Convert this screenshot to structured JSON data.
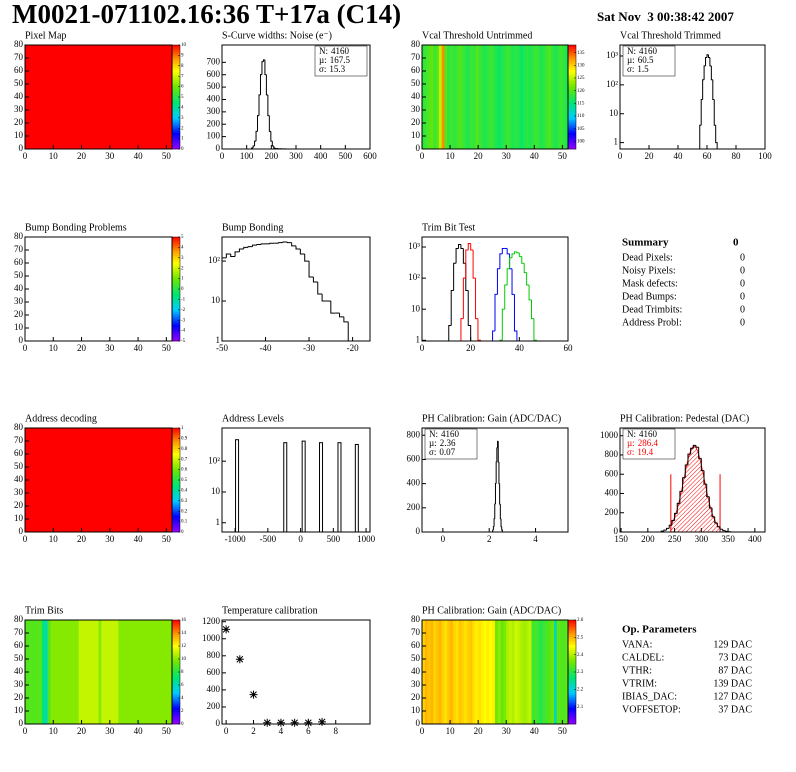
{
  "header": {
    "title": "M0021-071102.16:36 T+17a (C14)",
    "date": "Sat Nov  3 00:38:42 2007"
  },
  "summary": {
    "title": "Summary",
    "value": 0,
    "rows": [
      {
        "label": "Dead Pixels:",
        "value": 0
      },
      {
        "label": "Noisy Pixels:",
        "value": 0
      },
      {
        "label": "Mask defects:",
        "value": 0
      },
      {
        "label": "Dead Bumps:",
        "value": 0
      },
      {
        "label": "Dead Trimbits:",
        "value": 0
      },
      {
        "label": "Address Probl:",
        "value": 0
      }
    ]
  },
  "op_parameters": {
    "title": "Op. Parameters",
    "rows": [
      {
        "label": "VANA:",
        "value": "129 DAC"
      },
      {
        "label": "CALDEL:",
        "value": "73 DAC"
      },
      {
        "label": "VTHR:",
        "value": "87 DAC"
      },
      {
        "label": "VTRIM:",
        "value": "139 DAC"
      },
      {
        "label": "IBIAS_DAC:",
        "value": "127 DAC"
      },
      {
        "label": "VOFFSETOP:",
        "value": "37 DAC"
      }
    ]
  },
  "chart_data": [
    {
      "type": "heatmap",
      "title": "Pixel Map",
      "xlim": [
        0,
        52
      ],
      "ylim": [
        0,
        80
      ],
      "xticks": [
        0,
        10,
        20,
        30,
        40,
        50
      ],
      "yticks": [
        0,
        10,
        20,
        30,
        40,
        50,
        60,
        70,
        80
      ],
      "zlim": [
        0,
        10
      ],
      "zticks": [
        0,
        1,
        2,
        3,
        4,
        5,
        6,
        7,
        8,
        9,
        10
      ],
      "z": 10
    },
    {
      "type": "histogram",
      "title": "S-Curve widths: Noise (e⁻)",
      "xlim": [
        0,
        600
      ],
      "ylim": [
        0,
        840
      ],
      "xticks": [
        0,
        100,
        200,
        300,
        400,
        500,
        600
      ],
      "yticks": [
        0,
        100,
        200,
        300,
        400,
        500,
        600,
        700
      ],
      "color": "#000000",
      "bins": [
        120,
        126,
        132,
        138,
        144,
        150,
        156,
        162,
        168,
        174,
        180,
        186,
        192,
        198,
        204,
        210,
        216,
        222,
        228,
        234,
        240,
        246,
        252,
        258
      ],
      "values": [
        8,
        24,
        64,
        142,
        270,
        437,
        601,
        706,
        720,
        601,
        437,
        270,
        142,
        64,
        24,
        8,
        4,
        3,
        2,
        2,
        1,
        1,
        1
      ],
      "stats_corner": "upper right",
      "stats": [
        {
          "label": "N:",
          "value": 4160
        },
        {
          "label": "µ:",
          "value": 167.5
        },
        {
          "label": "σ:",
          "value": 15.3
        }
      ]
    },
    {
      "type": "heatmap",
      "title": "Vcal Threshold Untrimmed",
      "xlim": [
        0,
        52
      ],
      "ylim": [
        0,
        80
      ],
      "xticks": [
        0,
        10,
        20,
        30,
        40,
        50
      ],
      "yticks": [
        0,
        10,
        20,
        30,
        40,
        50,
        60,
        70,
        80
      ],
      "zlim": [
        97,
        138
      ],
      "zticks": [
        100,
        105,
        110,
        115,
        120,
        125,
        130,
        135
      ],
      "column_values": [
        118,
        119,
        120,
        121,
        119,
        120,
        125,
        133,
        120,
        118,
        119,
        118,
        119,
        120,
        119,
        118,
        117,
        119,
        118,
        120,
        119,
        118,
        117,
        118,
        119,
        118,
        117,
        116,
        117,
        118,
        119,
        118,
        117,
        118,
        117,
        116,
        117,
        118,
        117,
        118,
        119,
        118,
        117,
        118,
        119,
        120,
        118,
        117,
        118,
        119,
        118,
        117
      ]
    },
    {
      "type": "histogram",
      "title": "Vcal Threshold Trimmed",
      "log_y": true,
      "xlim": [
        0,
        100
      ],
      "ylim": [
        0.6,
        2400
      ],
      "xticks": [
        0,
        20,
        40,
        60,
        80,
        100
      ],
      "yticks": [
        1,
        10,
        {
          "value": 100,
          "label": "10²"
        },
        {
          "value": 1000,
          "label": "10³"
        }
      ],
      "color": "#000000",
      "bins": [
        55,
        56,
        57,
        58,
        59,
        60,
        61,
        62,
        63,
        64,
        65,
        66,
        67
      ],
      "values": [
        4,
        31,
        150,
        455,
        884,
        1106,
        884,
        455,
        150,
        31,
        4,
        1
      ],
      "stats_corner": "upper left",
      "stats": [
        {
          "label": "N:",
          "value": 4160
        },
        {
          "label": "µ:",
          "value": 60.5
        },
        {
          "label": "σ:",
          "value": 1.5
        }
      ]
    },
    {
      "type": "heatmap",
      "title": "Bump Bonding Problems",
      "xlim": [
        0,
        52
      ],
      "ylim": [
        0,
        80
      ],
      "xticks": [
        0,
        10,
        20,
        30,
        40,
        50
      ],
      "yticks": [
        0,
        10,
        20,
        30,
        40,
        50,
        60,
        70,
        80
      ],
      "zlim": [
        -5,
        5
      ],
      "zticks": [
        -5,
        -4,
        -3,
        -2,
        -1,
        0,
        1,
        2,
        3,
        4,
        5
      ]
    },
    {
      "type": "histogram",
      "title": "Bump Bonding",
      "log_y": true,
      "xlim": [
        -50,
        -16
      ],
      "ylim": [
        1,
        400
      ],
      "xticks": [
        -50,
        -40,
        -30,
        -20
      ],
      "yticks": [
        1,
        10,
        {
          "value": 100,
          "label": "10²"
        }
      ],
      "color": "#000000",
      "bins": [
        -50,
        -49,
        -48,
        -47,
        -46,
        -45,
        -44,
        -43,
        -42,
        -41,
        -40,
        -39,
        -38,
        -37,
        -36,
        -35,
        -34,
        -33,
        -32,
        -31,
        -30,
        -29,
        -28,
        -27,
        -26,
        -25,
        -24,
        -23,
        -22,
        -21,
        -20
      ],
      "values": [
        120,
        150,
        130,
        170,
        200,
        220,
        230,
        250,
        260,
        270,
        270,
        280,
        280,
        290,
        300,
        290,
        240,
        200,
        150,
        100,
        40,
        30,
        15,
        10,
        10,
        5,
        5,
        4,
        3,
        1
      ]
    },
    {
      "type": "histogram",
      "title": "Trim Bit Test",
      "log_y": true,
      "xlim": [
        0,
        60
      ],
      "ylim": [
        0.95,
        2100
      ],
      "xticks": [
        0,
        20,
        40,
        60
      ],
      "yticks": [
        1,
        10,
        {
          "value": 100,
          "label": "10²"
        },
        {
          "value": 1000,
          "label": "10³"
        }
      ],
      "series": [
        {
          "color": "#000000",
          "bins": [
            11,
            12,
            13,
            14,
            15,
            16,
            17,
            18,
            19,
            20
          ],
          "values": [
            3,
            40,
            300,
            900,
            1200,
            900,
            300,
            40,
            3
          ]
        },
        {
          "color": "#ff0000",
          "bins": [
            16,
            17,
            18,
            19,
            20,
            21,
            22,
            23,
            24
          ],
          "values": [
            5,
            100,
            800,
            1300,
            800,
            100,
            5,
            1
          ]
        },
        {
          "color": "#0000ff",
          "bins": [
            29,
            30,
            31,
            32,
            33,
            34,
            35,
            36,
            37,
            38,
            39
          ],
          "values": [
            2,
            30,
            200,
            600,
            900,
            900,
            600,
            200,
            30,
            2
          ]
        },
        {
          "color": "#00cc00",
          "bins": [
            32,
            33,
            34,
            35,
            36,
            37,
            38,
            39,
            40,
            41,
            42,
            43,
            44,
            45,
            46,
            47
          ],
          "values": [
            1,
            10,
            60,
            200,
            450,
            600,
            700,
            650,
            500,
            300,
            150,
            60,
            20,
            5,
            1
          ]
        }
      ]
    },
    {
      "type": "heatmap",
      "title": "Address decoding",
      "xlim": [
        0,
        52
      ],
      "ylim": [
        0,
        80
      ],
      "xticks": [
        0,
        10,
        20,
        30,
        40,
        50
      ],
      "yticks": [
        0,
        10,
        20,
        30,
        40,
        50,
        60,
        70,
        80
      ],
      "zlim": [
        0,
        1
      ],
      "zticks": [
        0,
        0.1,
        0.2,
        0.3,
        0.4,
        0.5,
        0.6,
        0.7,
        0.8,
        0.9,
        1
      ],
      "z": 1
    },
    {
      "type": "spike",
      "title": "Address Levels",
      "log_y": true,
      "xlim": [
        -1200,
        1060
      ],
      "ylim": [
        0.5,
        1200
      ],
      "xticks": [
        -1000,
        -500,
        0,
        500,
        1000
      ],
      "yticks": [
        1,
        10,
        {
          "value": 100,
          "label": "10²"
        }
      ],
      "color": "#000000",
      "x": [
        -970,
        -234,
        47,
        312,
        594,
        859
      ],
      "values": [
        500,
        400,
        450,
        400,
        400,
        350
      ]
    },
    {
      "type": "histogram",
      "title": "PH Calibration: Gain (ADC/DAC)",
      "xlim": [
        -0.9,
        5.4
      ],
      "ylim": [
        0,
        860
      ],
      "xticks": [
        0,
        2,
        4
      ],
      "yticks": [
        0,
        200,
        400,
        600,
        800
      ],
      "color": "#000000",
      "bins": [
        2.15,
        2.18,
        2.21,
        2.24,
        2.27,
        2.3,
        2.33,
        2.36,
        2.39,
        2.42,
        2.45,
        2.48,
        2.51,
        2.54,
        2.57
      ],
      "values": [
        15,
        44,
        110,
        231,
        401,
        579,
        695,
        750,
        579,
        401,
        231,
        110,
        44,
        15
      ],
      "stats_corner": "upper left",
      "stats": [
        {
          "label": "N:",
          "value": 4160
        },
        {
          "label": "µ:",
          "value": 2.36
        },
        {
          "label": "σ:",
          "value": 0.07
        }
      ]
    },
    {
      "type": "histogram",
      "title": "PH Calibration: Pedestal (DAC)",
      "xlim": [
        148,
        419
      ],
      "ylim": [
        0,
        1080
      ],
      "xticks": [
        150,
        200,
        250,
        300,
        350,
        400
      ],
      "yticks": [
        0,
        200,
        400,
        600,
        800,
        1000
      ],
      "color": "#000000",
      "bins": [
        225,
        230,
        235,
        240,
        245,
        250,
        255,
        260,
        265,
        270,
        275,
        280,
        285,
        290,
        295,
        300,
        305,
        310,
        315,
        320,
        325,
        330,
        335,
        340,
        345,
        350,
        355
      ],
      "values": [
        9,
        19,
        38,
        70,
        119,
        194,
        297,
        422,
        563,
        696,
        809,
        870,
        900,
        880,
        765,
        638,
        497,
        366,
        251,
        159,
        95,
        54,
        28,
        14,
        6,
        3
      ],
      "fit": {
        "color": "#ff0000",
        "constant": 890,
        "range": [
          243,
          335
        ],
        "range_height": 600
      },
      "stats_corner": "upper left",
      "stats": [
        {
          "label": "N:",
          "value": 4160
        },
        {
          "label": "µ:",
          "value": 286.4,
          "color": "#ff0000"
        },
        {
          "label": "σ:",
          "value": 19.4,
          "color": "#ff0000"
        }
      ]
    },
    {
      "type": "heatmap",
      "title": "Trim Bits",
      "xlim": [
        0,
        52
      ],
      "ylim": [
        0,
        80
      ],
      "xticks": [
        0,
        10,
        20,
        30,
        40,
        50
      ],
      "yticks": [
        0,
        10,
        20,
        30,
        40,
        50,
        60,
        70,
        80
      ],
      "zlim": [
        0,
        16
      ],
      "zticks": [
        0,
        2,
        4,
        6,
        8,
        10,
        12,
        14,
        16
      ],
      "column_values": [
        9,
        9,
        9,
        9,
        9,
        9,
        7,
        6,
        9,
        10,
        10,
        10,
        10,
        10,
        10,
        10,
        10,
        10,
        10,
        11,
        11,
        11,
        11,
        11,
        11,
        11,
        10,
        11,
        11,
        11,
        11,
        11,
        11,
        10,
        10,
        10,
        10,
        10,
        10,
        10,
        10,
        10,
        10,
        10,
        10,
        10,
        10,
        10,
        10,
        10,
        10,
        10
      ]
    },
    {
      "type": "scatter",
      "title": "Temperature calibration",
      "xlim": [
        -0.3,
        10.5
      ],
      "ylim": [
        0,
        1220
      ],
      "xticks": [
        0,
        2,
        4,
        6,
        8
      ],
      "yticks": [
        0,
        200,
        400,
        600,
        800,
        1000,
        1200
      ],
      "color": "#000000",
      "x": [
        0,
        1,
        2,
        3,
        4,
        5,
        6,
        7
      ],
      "values": [
        1110,
        760,
        345,
        15,
        15,
        15,
        15,
        25
      ]
    },
    {
      "type": "heatmap",
      "title": "PH Calibration: Gain (ADC/DAC)",
      "xlim": [
        0,
        52
      ],
      "ylim": [
        0,
        80
      ],
      "xticks": [
        0,
        10,
        20,
        30,
        40,
        50
      ],
      "yticks": [
        0,
        10,
        20,
        30,
        40,
        50,
        60,
        70,
        80
      ],
      "zlim": [
        2.0,
        2.6
      ],
      "zticks": [
        2.1,
        2.2,
        2.3,
        2.4,
        2.5,
        2.6
      ],
      "column_values": [
        2.48,
        2.5,
        2.49,
        2.5,
        2.48,
        2.49,
        2.5,
        2.48,
        2.47,
        2.49,
        2.5,
        2.48,
        2.47,
        2.49,
        2.48,
        2.47,
        2.48,
        2.49,
        2.47,
        2.46,
        2.47,
        2.46,
        2.45,
        2.46,
        2.45,
        2.46,
        2.36,
        2.38,
        2.35,
        2.37,
        2.4,
        2.41,
        2.4,
        2.42,
        2.41,
        2.4,
        2.39,
        2.4,
        2.41,
        2.32,
        2.33,
        2.31,
        2.3,
        2.32,
        2.33,
        2.34,
        2.36,
        2.22,
        2.35,
        2.34,
        2.33,
        2.35
      ]
    }
  ]
}
